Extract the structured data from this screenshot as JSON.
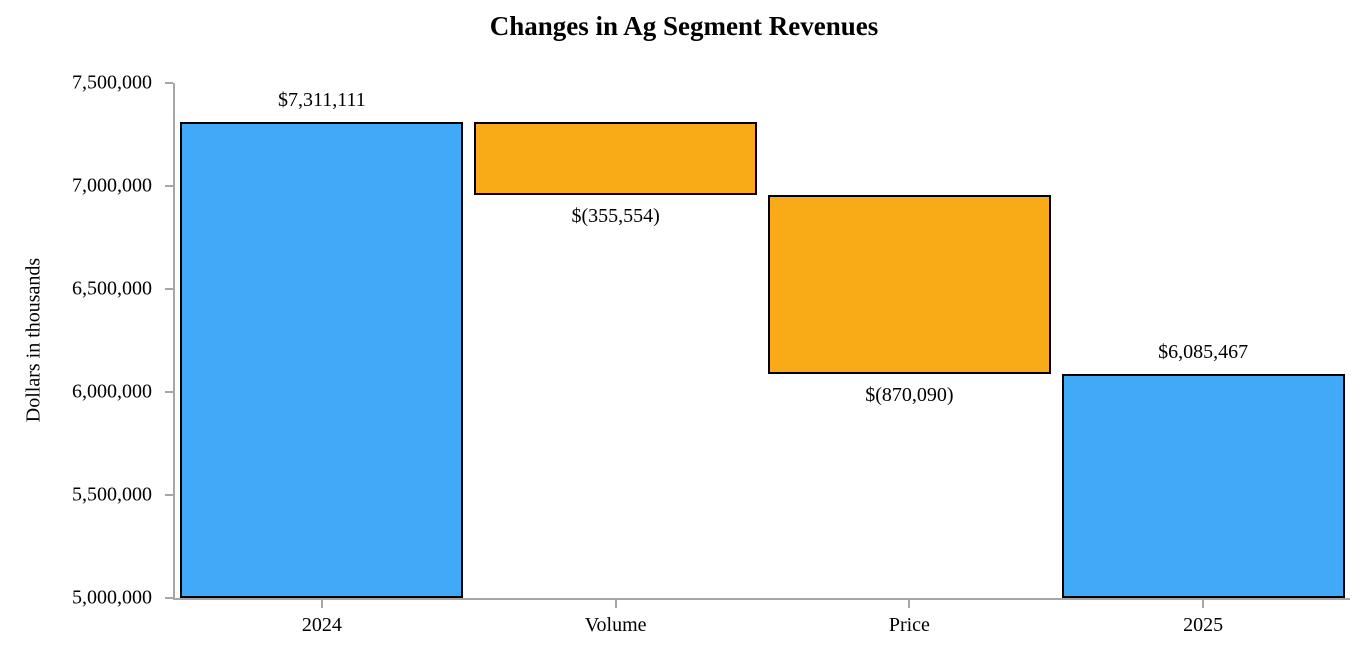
{
  "chart_data": {
    "type": "waterfall",
    "title": "Changes in Ag Segment Revenues",
    "ylabel": "Dollars in thousands",
    "xlabel": "",
    "ylim": [
      5000000,
      7500000
    ],
    "ytick_step": 500000,
    "yticks": [
      {
        "value": 7500000,
        "label": "7,500,000"
      },
      {
        "value": 7000000,
        "label": "7,000,000"
      },
      {
        "value": 6500000,
        "label": "6,500,000"
      },
      {
        "value": 6000000,
        "label": "6,000,000"
      },
      {
        "value": 5500000,
        "label": "5,500,000"
      },
      {
        "value": 5000000,
        "label": "5,000,000"
      }
    ],
    "grid": false,
    "legend": false,
    "categories": [
      "2024",
      "Volume",
      "Price",
      "2025"
    ],
    "bars": [
      {
        "category": "2024",
        "role": "total",
        "start": 5000000,
        "end": 7311111,
        "value": 7311111,
        "label": "$7,311,111",
        "label_position": "above",
        "color_key": "total"
      },
      {
        "category": "Volume",
        "role": "decrease",
        "start": 7311111,
        "end": 6955557,
        "value": -355554,
        "label": "$(355,554)",
        "label_position": "below",
        "color_key": "change"
      },
      {
        "category": "Price",
        "role": "decrease",
        "start": 6955557,
        "end": 6085467,
        "value": -870090,
        "label": "$(870,090)",
        "label_position": "below",
        "color_key": "change"
      },
      {
        "category": "2025",
        "role": "total",
        "start": 5000000,
        "end": 6085467,
        "value": 6085467,
        "label": "$6,085,467",
        "label_position": "above",
        "color_key": "total"
      }
    ],
    "colors": {
      "total": "#41aaf8",
      "change": "#f8ab16",
      "bar_border": "#000000",
      "axis": "#a6a6a6",
      "text": "#000000",
      "background": "#ffffff"
    }
  }
}
